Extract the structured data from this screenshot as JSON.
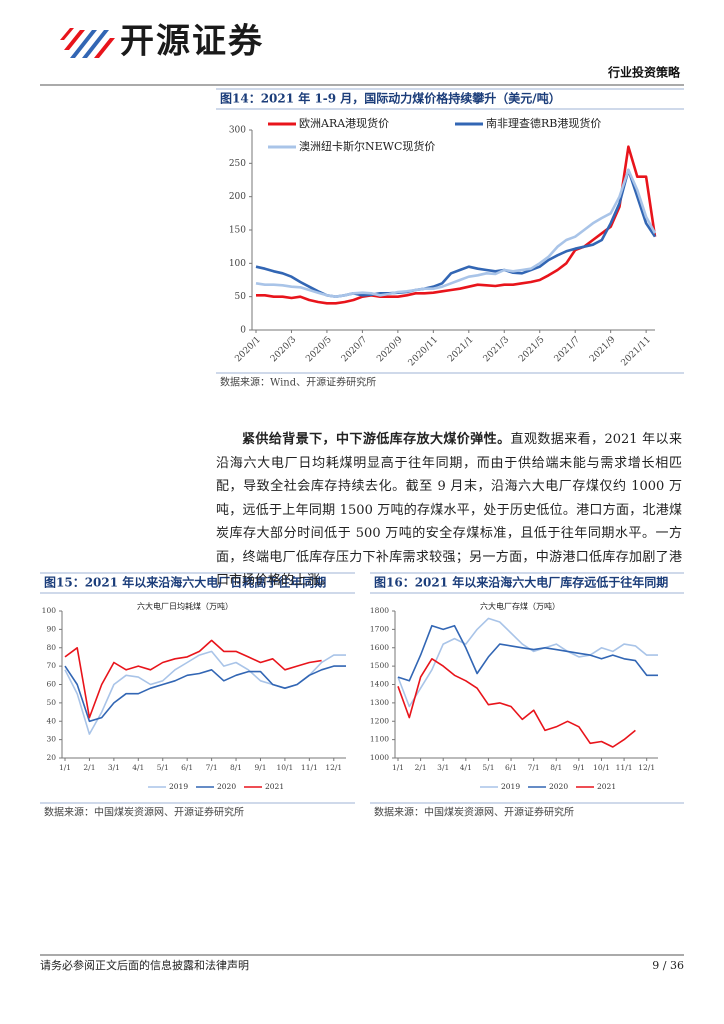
{
  "header": {
    "logo": "开源证券",
    "tag": "行业投资策略"
  },
  "body": {
    "lead": "紧供给背景下，中下游低库存放大煤价弹性。",
    "text": "直观数据来看，2021 年以来沿海六大电厂日均耗煤明显高于往年同期，而由于供给端未能与需求增长相匹配，导致全社会库存持续去化。截至 9 月末，沿海六大电厂存煤仅约 1000 万吨，远低于上年同期 1500 万吨的存煤水平，处于历史低位。港口方面，北港煤炭库存大部分时间低于 500 万吨的安全存煤标准，且低于往年同期水平。一方面，终端电厂低库存压力下补库需求较强；另一方面，中游港口低库存加剧了港口市场价格的上涨。"
  },
  "footer": {
    "disclaimer": "请务必参阅正文后面的信息披露和法律声明",
    "page": "9 / 36"
  },
  "chart_data": [
    {
      "type": "line",
      "title": "图14：2021 年 1-9 月，国际动力煤价格持续攀升（美元/吨）",
      "source": "数据来源：Wind、开源证券研究所",
      "categories": [
        "2020/1",
        null,
        null,
        null,
        "2020/3",
        null,
        null,
        null,
        "2020/5",
        null,
        null,
        null,
        "2020/7",
        null,
        null,
        null,
        "2020/9",
        null,
        null,
        null,
        "2020/11",
        null,
        null,
        null,
        "2021/1",
        null,
        null,
        null,
        "2021/3",
        null,
        null,
        null,
        "2021/5",
        null,
        null,
        null,
        "2021/7",
        null,
        null,
        null,
        "2021/9",
        null,
        null,
        null,
        "2021/11",
        null
      ],
      "series": [
        {
          "name": "欧洲ARA港现货价",
          "color": "#e8141b",
          "values": [
            52,
            52,
            50,
            50,
            48,
            50,
            45,
            42,
            40,
            40,
            42,
            45,
            50,
            52,
            50,
            50,
            50,
            52,
            55,
            55,
            56,
            58,
            60,
            62,
            65,
            68,
            67,
            66,
            68,
            68,
            70,
            72,
            75,
            82,
            90,
            100,
            120,
            125,
            135,
            145,
            155,
            185,
            275,
            230,
            230,
            140
          ]
        },
        {
          "name": "南非理查德RB港现货价",
          "color": "#3266b4",
          "values": [
            95,
            92,
            88,
            85,
            80,
            72,
            65,
            58,
            52,
            50,
            52,
            55,
            52,
            53,
            55,
            55,
            56,
            57,
            60,
            62,
            65,
            70,
            85,
            90,
            95,
            92,
            90,
            88,
            90,
            86,
            85,
            90,
            95,
            105,
            112,
            118,
            122,
            125,
            128,
            135,
            160,
            190,
            240,
            200,
            160,
            140
          ]
        },
        {
          "name": "澳洲纽卡斯尔NEWC现货价",
          "color": "#a9c4e8",
          "values": [
            70,
            68,
            68,
            67,
            65,
            64,
            60,
            56,
            52,
            50,
            52,
            55,
            56,
            55,
            52,
            54,
            57,
            58,
            60,
            62,
            62,
            65,
            70,
            75,
            80,
            82,
            85,
            84,
            90,
            88,
            90,
            92,
            100,
            110,
            125,
            135,
            140,
            150,
            160,
            168,
            175,
            200,
            240,
            210,
            170,
            145
          ]
        }
      ],
      "ylim": [
        0,
        300
      ],
      "yticks": [
        0,
        50,
        100,
        150,
        200,
        250,
        300
      ],
      "legend": "top"
    },
    {
      "type": "line",
      "title": "图15：2021 年以来沿海六大电厂日耗高于往年同期",
      "subtitle": "六大电厂日均耗煤（万吨）",
      "source": "数据来源：中国煤炭资源网、开源证券研究所",
      "categories": [
        "1/1",
        null,
        "2/1",
        null,
        "3/1",
        null,
        "4/1",
        null,
        "5/1",
        null,
        "6/1",
        null,
        "7/1",
        null,
        "8/1",
        null,
        "9/1",
        null,
        "10/1",
        null,
        "11/1",
        null,
        "12/1",
        null
      ],
      "series": [
        {
          "name": "2019",
          "color": "#a9c4e8",
          "values": [
            68,
            55,
            33,
            45,
            60,
            65,
            64,
            60,
            62,
            68,
            72,
            76,
            78,
            70,
            72,
            68,
            62,
            60,
            58,
            60,
            65,
            72,
            76,
            76
          ]
        },
        {
          "name": "2020",
          "color": "#3266b4",
          "values": [
            70,
            60,
            40,
            42,
            50,
            55,
            55,
            58,
            60,
            62,
            65,
            66,
            68,
            62,
            65,
            67,
            67,
            60,
            58,
            60,
            65,
            68,
            70,
            70
          ]
        },
        {
          "name": "2021",
          "color": "#e8141b",
          "values": [
            75,
            80,
            42,
            60,
            72,
            68,
            70,
            68,
            72,
            74,
            75,
            78,
            84,
            78,
            78,
            75,
            72,
            74,
            68,
            70,
            72,
            73,
            null,
            null
          ]
        }
      ],
      "ylim": [
        20,
        100
      ],
      "yticks": [
        20,
        30,
        40,
        50,
        60,
        70,
        80,
        90,
        100
      ],
      "legend": "bottom"
    },
    {
      "type": "line",
      "title": "图16：2021 年以来沿海六大电厂库存远低于往年同期",
      "subtitle": "六大电厂存煤（万吨）",
      "source": "数据来源：中国煤炭资源网、开源证券研究所",
      "categories": [
        "1/1",
        null,
        "2/1",
        null,
        "3/1",
        null,
        "4/1",
        null,
        "5/1",
        null,
        "6/1",
        null,
        "7/1",
        null,
        "8/1",
        null,
        "9/1",
        null,
        "10/1",
        null,
        "11/1",
        null,
        "12/1",
        null
      ],
      "series": [
        {
          "name": "2019",
          "color": "#a9c4e8",
          "values": [
            1440,
            1280,
            1380,
            1480,
            1620,
            1650,
            1620,
            1700,
            1760,
            1740,
            1680,
            1620,
            1580,
            1600,
            1620,
            1580,
            1550,
            1560,
            1600,
            1580,
            1620,
            1610,
            1560,
            1560
          ]
        },
        {
          "name": "2020",
          "color": "#3266b4",
          "values": [
            1440,
            1420,
            1560,
            1720,
            1700,
            1720,
            1600,
            1460,
            1550,
            1620,
            1610,
            1600,
            1590,
            1600,
            1590,
            1580,
            1570,
            1560,
            1540,
            1560,
            1540,
            1530,
            1450,
            1450
          ]
        },
        {
          "name": "2021",
          "color": "#e8141b",
          "values": [
            1390,
            1220,
            1440,
            1540,
            1500,
            1450,
            1420,
            1380,
            1290,
            1300,
            1280,
            1210,
            1260,
            1150,
            1170,
            1200,
            1170,
            1080,
            1090,
            1060,
            1100,
            1150,
            null,
            null
          ]
        }
      ],
      "ylim": [
        1000,
        1800
      ],
      "yticks": [
        1000,
        1100,
        1200,
        1300,
        1400,
        1500,
        1600,
        1700,
        1800
      ],
      "legend": "bottom"
    }
  ]
}
